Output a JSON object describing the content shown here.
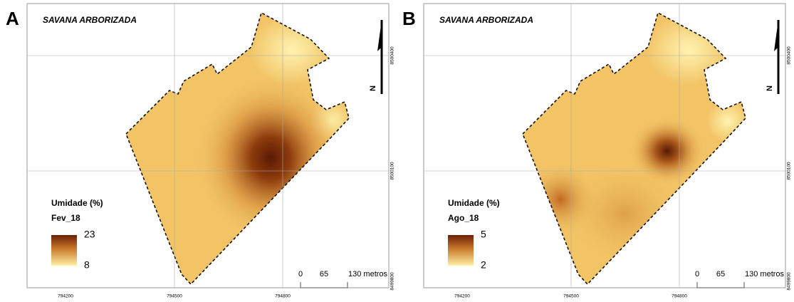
{
  "panels": [
    {
      "label": "A",
      "title": "SAVANA ARBORIZADA",
      "legend": {
        "title": "Umidade (%)",
        "period": "Fev_18",
        "max": 23,
        "min": 8
      },
      "scale": [
        "0",
        "65",
        "130 metros"
      ],
      "x_coords": [
        "794200",
        "794500",
        "794800"
      ],
      "y_coords": [
        "8500400",
        "8500100",
        "8499800"
      ],
      "north": "N"
    },
    {
      "label": "B",
      "title": "SAVANA ARBORIZADA",
      "legend": {
        "title": "Umidade (%)",
        "period": "Ago_18",
        "max": 5,
        "min": 2
      },
      "scale": [
        "0",
        "65",
        "130 metros"
      ],
      "x_coords": [
        "794200",
        "794500",
        "794800"
      ],
      "y_coords": [
        "8500400",
        "8500100",
        "8499800"
      ],
      "north": "N"
    }
  ]
}
